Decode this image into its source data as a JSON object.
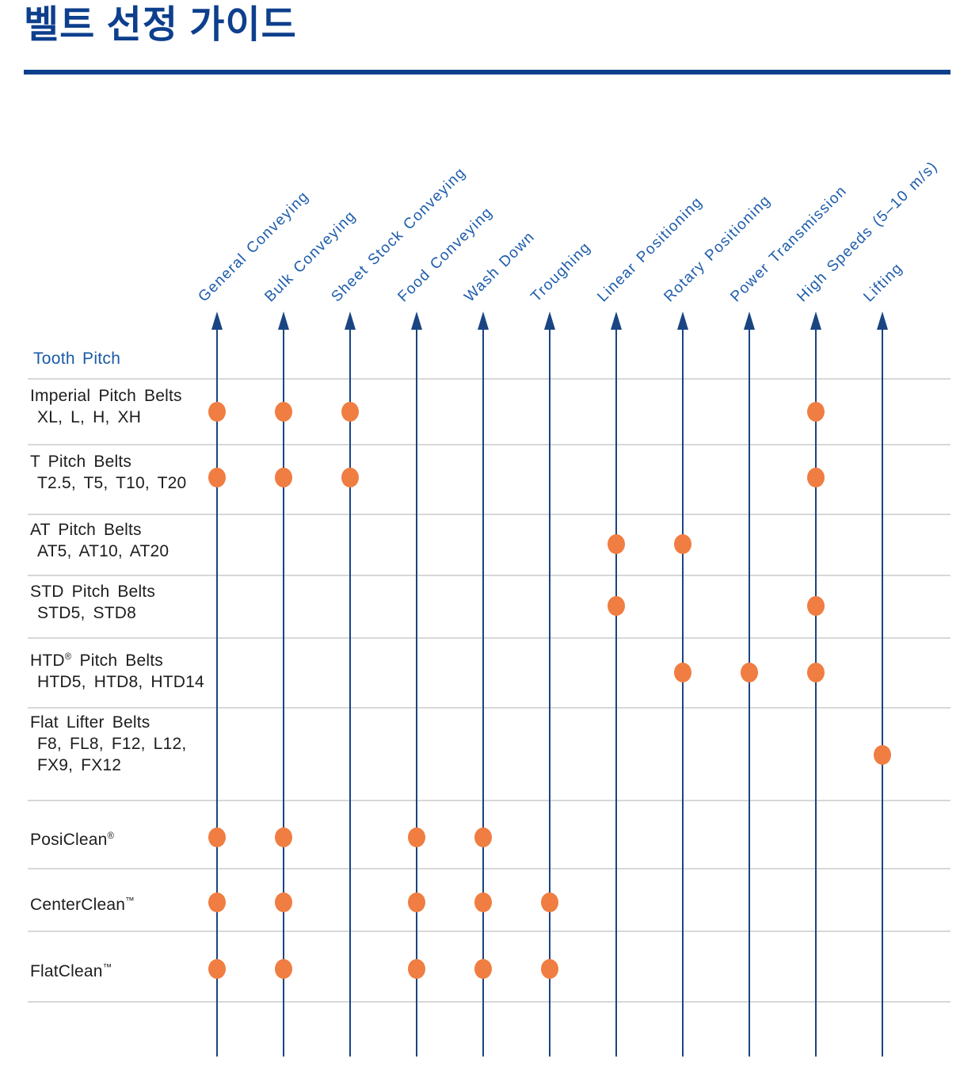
{
  "page": {
    "title": "벨트 선정 가이드",
    "row_group_header": "Tooth Pitch"
  },
  "colors": {
    "title_navy": "#0d3f8c",
    "line_navy": "#1a4582",
    "column_label_blue": "#1d5cab",
    "group_header_blue": "#1a5aa8",
    "row_label_black": "#1d1d1d",
    "dot_orange": "#f07d41",
    "separator_gray": "#d8d8d8"
  },
  "chart_data": {
    "type": "matrix",
    "title": "벨트 선정 가이드",
    "row_header": "Tooth Pitch",
    "legend_position": "none",
    "grid": "columns as upward arrows, light gray row separators",
    "columns": [
      "General Conveying",
      "Bulk Conveying",
      "Sheet Stock Conveying",
      "Food Conveying",
      "Wash Down",
      "Troughing",
      "Linear Positioning",
      "Rotary Positioning",
      "Power Transmission",
      "High Speeds (5–10 m/s)",
      "Lifting"
    ],
    "rows": [
      {
        "label_lines": [
          "Imperial Pitch Belts",
          "XL, L, H, XH"
        ],
        "marks": [
          0,
          1,
          2,
          9
        ]
      },
      {
        "label_lines": [
          "T Pitch Belts",
          "T2.5, T5, T10, T20"
        ],
        "marks": [
          0,
          1,
          2,
          9
        ]
      },
      {
        "label_lines": [
          "AT Pitch Belts",
          "AT5, AT10, AT20"
        ],
        "marks": [
          6,
          7
        ]
      },
      {
        "label_lines": [
          "STD Pitch Belts",
          "STD5, STD8"
        ],
        "marks": [
          6,
          9
        ]
      },
      {
        "label_lines": [
          "HTD® Pitch Belts",
          "HTD5, HTD8, HTD14"
        ],
        "marks": [
          7,
          8,
          9
        ]
      },
      {
        "label_lines": [
          "Flat Lifter Belts",
          "F8, FL8, F12, L12,",
          "FX9, FX12"
        ],
        "marks": [
          10
        ]
      },
      {
        "label_lines": [
          "PosiClean®"
        ],
        "marks": [
          0,
          1,
          3,
          4
        ]
      },
      {
        "label_lines": [
          "CenterClean™"
        ],
        "marks": [
          0,
          1,
          3,
          4,
          5
        ]
      },
      {
        "label_lines": [
          "FlatClean™"
        ],
        "marks": [
          0,
          1,
          3,
          4,
          5
        ]
      }
    ],
    "mark_symbol": "orange dot"
  }
}
